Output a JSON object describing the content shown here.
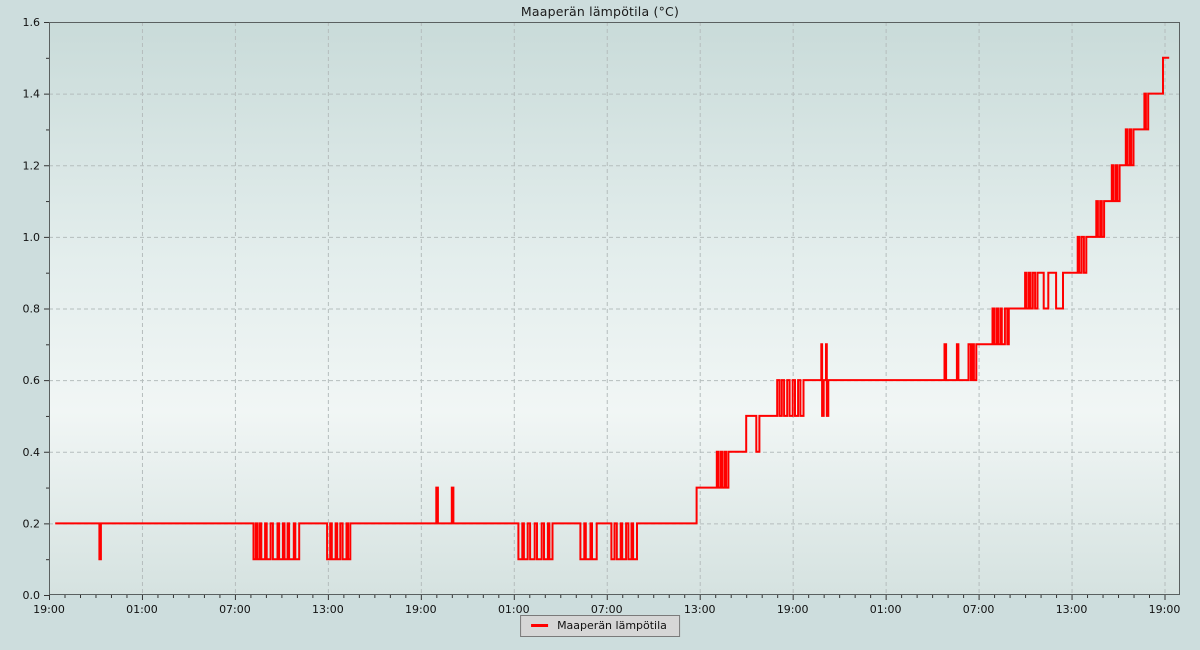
{
  "chart_data": {
    "type": "line",
    "subtype": "step-after",
    "title": "Maaperän lämpötila (°C)",
    "legend": {
      "position": "bottom-center",
      "label": "Maaperän lämpötila"
    },
    "grid": {
      "visible": true,
      "style": "dashed"
    },
    "colors": {
      "line": "#ff0000",
      "grid": "#b5bdbd",
      "frame": "#5a6060",
      "tick": "#333333",
      "text": "#111111",
      "page_bg": "#cddddd",
      "plot_bg_top": "#c9dbd9",
      "plot_bg_mid": "#f1f6f5",
      "plot_bg_bottom": "#d5e2e0",
      "legend_bg": "#d6d6d6",
      "legend_border": "#7a7a7a"
    },
    "x_axis": {
      "unit": "hours-from-start",
      "range": [
        0,
        73
      ],
      "minor_step": 1,
      "ticks": [
        {
          "h": 0,
          "label": "19:00"
        },
        {
          "h": 6,
          "label": "01:00"
        },
        {
          "h": 12,
          "label": "07:00"
        },
        {
          "h": 18,
          "label": "13:00"
        },
        {
          "h": 24,
          "label": "19:00"
        },
        {
          "h": 30,
          "label": "01:00"
        },
        {
          "h": 36,
          "label": "07:00"
        },
        {
          "h": 42,
          "label": "13:00"
        },
        {
          "h": 48,
          "label": "19:00"
        },
        {
          "h": 54,
          "label": "01:00"
        },
        {
          "h": 60,
          "label": "07:00"
        },
        {
          "h": 66,
          "label": "13:00"
        },
        {
          "h": 72,
          "label": "19:00"
        }
      ]
    },
    "y_axis": {
      "unit": "°C",
      "range": [
        0,
        1.6
      ],
      "minor_step": 0.1,
      "ticks": [
        {
          "v": 0.0,
          "label": "0.0"
        },
        {
          "v": 0.2,
          "label": "0.2"
        },
        {
          "v": 0.4,
          "label": "0.4"
        },
        {
          "v": 0.6,
          "label": "0.6"
        },
        {
          "v": 0.8,
          "label": "0.8"
        },
        {
          "v": 1.0,
          "label": "1.0"
        },
        {
          "v": 1.2,
          "label": "1.2"
        },
        {
          "v": 1.4,
          "label": "1.4"
        },
        {
          "v": 1.6,
          "label": "1.6"
        }
      ]
    },
    "series": [
      {
        "name": "Maaperän lämpötila",
        "interpolation": "step-after",
        "end_time": 72.3,
        "points": [
          [
            0.4,
            0.2
          ],
          [
            3.25,
            0.1
          ],
          [
            3.35,
            0.2
          ],
          [
            13.2,
            0.1
          ],
          [
            13.35,
            0.2
          ],
          [
            13.45,
            0.1
          ],
          [
            13.6,
            0.2
          ],
          [
            13.7,
            0.1
          ],
          [
            13.95,
            0.2
          ],
          [
            14.05,
            0.1
          ],
          [
            14.3,
            0.2
          ],
          [
            14.45,
            0.1
          ],
          [
            14.75,
            0.2
          ],
          [
            14.85,
            0.1
          ],
          [
            15.1,
            0.2
          ],
          [
            15.2,
            0.1
          ],
          [
            15.4,
            0.2
          ],
          [
            15.5,
            0.1
          ],
          [
            15.8,
            0.2
          ],
          [
            15.9,
            0.1
          ],
          [
            16.15,
            0.2
          ],
          [
            17.95,
            0.1
          ],
          [
            18.15,
            0.2
          ],
          [
            18.25,
            0.1
          ],
          [
            18.5,
            0.2
          ],
          [
            18.6,
            0.1
          ],
          [
            18.8,
            0.2
          ],
          [
            18.95,
            0.1
          ],
          [
            19.2,
            0.2
          ],
          [
            19.3,
            0.1
          ],
          [
            19.45,
            0.2
          ],
          [
            25.0,
            0.3
          ],
          [
            25.1,
            0.2
          ],
          [
            26.0,
            0.3
          ],
          [
            26.1,
            0.2
          ],
          [
            30.3,
            0.1
          ],
          [
            30.55,
            0.2
          ],
          [
            30.65,
            0.1
          ],
          [
            30.9,
            0.2
          ],
          [
            31.05,
            0.1
          ],
          [
            31.35,
            0.2
          ],
          [
            31.5,
            0.1
          ],
          [
            31.8,
            0.2
          ],
          [
            31.95,
            0.1
          ],
          [
            32.2,
            0.2
          ],
          [
            32.3,
            0.1
          ],
          [
            32.5,
            0.2
          ],
          [
            34.3,
            0.1
          ],
          [
            34.55,
            0.2
          ],
          [
            34.65,
            0.1
          ],
          [
            34.95,
            0.2
          ],
          [
            35.05,
            0.1
          ],
          [
            35.35,
            0.2
          ],
          [
            36.3,
            0.1
          ],
          [
            36.5,
            0.2
          ],
          [
            36.65,
            0.1
          ],
          [
            36.9,
            0.2
          ],
          [
            37.0,
            0.1
          ],
          [
            37.25,
            0.2
          ],
          [
            37.4,
            0.1
          ],
          [
            37.6,
            0.2
          ],
          [
            37.7,
            0.1
          ],
          [
            37.95,
            0.2
          ],
          [
            41.8,
            0.3
          ],
          [
            43.1,
            0.4
          ],
          [
            43.2,
            0.3
          ],
          [
            43.35,
            0.4
          ],
          [
            43.45,
            0.3
          ],
          [
            43.6,
            0.4
          ],
          [
            43.7,
            0.3
          ],
          [
            43.85,
            0.4
          ],
          [
            45.0,
            0.5
          ],
          [
            45.65,
            0.4
          ],
          [
            45.85,
            0.5
          ],
          [
            47.0,
            0.6
          ],
          [
            47.15,
            0.5
          ],
          [
            47.3,
            0.6
          ],
          [
            47.45,
            0.5
          ],
          [
            47.65,
            0.6
          ],
          [
            47.8,
            0.5
          ],
          [
            48.0,
            0.6
          ],
          [
            48.15,
            0.5
          ],
          [
            48.35,
            0.6
          ],
          [
            48.5,
            0.5
          ],
          [
            48.7,
            0.6
          ],
          [
            49.85,
            0.7
          ],
          [
            49.9,
            0.5
          ],
          [
            50.0,
            0.6
          ],
          [
            50.15,
            0.7
          ],
          [
            50.2,
            0.5
          ],
          [
            50.3,
            0.6
          ],
          [
            57.8,
            0.7
          ],
          [
            57.9,
            0.6
          ],
          [
            58.6,
            0.7
          ],
          [
            58.7,
            0.6
          ],
          [
            59.35,
            0.7
          ],
          [
            59.5,
            0.6
          ],
          [
            59.6,
            0.7
          ],
          [
            59.7,
            0.6
          ],
          [
            59.85,
            0.7
          ],
          [
            60.9,
            0.8
          ],
          [
            61.0,
            0.7
          ],
          [
            61.15,
            0.8
          ],
          [
            61.25,
            0.7
          ],
          [
            61.4,
            0.8
          ],
          [
            61.5,
            0.7
          ],
          [
            61.7,
            0.8
          ],
          [
            61.85,
            0.7
          ],
          [
            61.95,
            0.8
          ],
          [
            63.0,
            0.9
          ],
          [
            63.1,
            0.8
          ],
          [
            63.25,
            0.9
          ],
          [
            63.35,
            0.8
          ],
          [
            63.5,
            0.9
          ],
          [
            63.65,
            0.8
          ],
          [
            63.8,
            0.9
          ],
          [
            64.2,
            0.8
          ],
          [
            64.5,
            0.9
          ],
          [
            65.0,
            0.8
          ],
          [
            65.45,
            0.9
          ],
          [
            66.4,
            1.0
          ],
          [
            66.5,
            0.9
          ],
          [
            66.65,
            1.0
          ],
          [
            66.8,
            0.9
          ],
          [
            66.95,
            1.0
          ],
          [
            67.6,
            1.1
          ],
          [
            67.7,
            1.0
          ],
          [
            67.85,
            1.1
          ],
          [
            67.95,
            1.0
          ],
          [
            68.1,
            1.1
          ],
          [
            68.6,
            1.2
          ],
          [
            68.7,
            1.1
          ],
          [
            68.85,
            1.2
          ],
          [
            68.95,
            1.1
          ],
          [
            69.1,
            1.2
          ],
          [
            69.5,
            1.3
          ],
          [
            69.6,
            1.2
          ],
          [
            69.75,
            1.3
          ],
          [
            69.85,
            1.2
          ],
          [
            70.0,
            1.3
          ],
          [
            70.7,
            1.4
          ],
          [
            70.8,
            1.3
          ],
          [
            70.95,
            1.4
          ],
          [
            71.9,
            1.5
          ]
        ]
      }
    ]
  }
}
